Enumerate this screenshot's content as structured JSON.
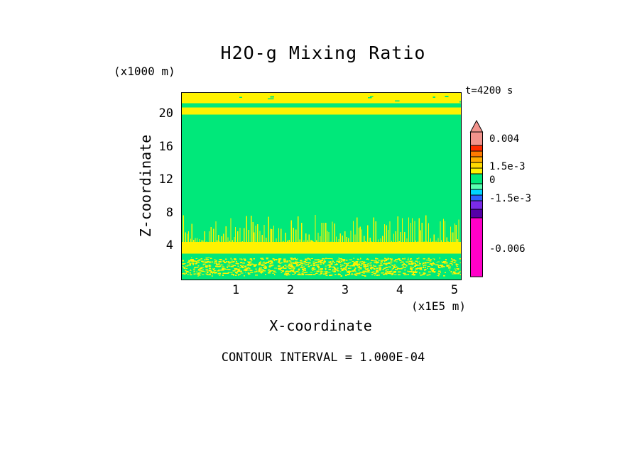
{
  "title": "H2O-g Mixing Ratio",
  "time_label": "t=4200 s",
  "footer": {
    "contour_interval_label": "CONTOUR INTERVAL = 1.000E-04"
  },
  "axes": {
    "x": {
      "label": "X-coordinate",
      "unit": "(x1E5 m)",
      "ticks": [
        "1",
        "2",
        "3",
        "4",
        "5"
      ]
    },
    "y": {
      "label": "Z-coordinate",
      "unit": "(x1000 m)",
      "ticks": [
        "20",
        "16",
        "12",
        "8",
        "4"
      ]
    }
  },
  "colorbar": {
    "arrow_color": "#F2938C",
    "labels": [
      {
        "text": "0.004"
      },
      {
        "text": "1.5e-3"
      },
      {
        "text": "0"
      },
      {
        "text": "-1.5e-3"
      },
      {
        "text": "-0.006"
      }
    ],
    "segments": [
      {
        "color": "#F2938C",
        "h": 19
      },
      {
        "color": "#FF2B00",
        "h": 8
      },
      {
        "color": "#FF7A00",
        "h": 8
      },
      {
        "color": "#FFAD00",
        "h": 8
      },
      {
        "color": "#FFD900",
        "h": 8
      },
      {
        "color": "#FFF200",
        "h": 8
      },
      {
        "color": "#00E87A",
        "h": 14
      },
      {
        "color": "#58FFB0",
        "h": 8
      },
      {
        "color": "#00D4FF",
        "h": 8
      },
      {
        "color": "#2E62FF",
        "h": 8
      },
      {
        "color": "#7A2BE8",
        "h": 12
      },
      {
        "color": "#5500A8",
        "h": 12
      },
      {
        "color": "#FF00C8",
        "h": 83
      }
    ]
  },
  "chart_data": {
    "type": "heatmap",
    "title": "H2O-g Mixing Ratio",
    "time_annotation": "t=4200 s",
    "contour_interval": 0.0001,
    "x_range": [
      0,
      5.1
    ],
    "x_unit": "1E5 m",
    "z_range": [
      0,
      22.6
    ],
    "z_unit": "1000 m",
    "colorbar_values": [
      0.004,
      0.0015,
      0,
      -0.0015,
      -0.006
    ],
    "field_colors": {
      "background": "#00E87A",
      "band": "#FFF200"
    },
    "regions": [
      {
        "name": "upper-yellow-band-a",
        "z": [
          21.35,
          22.6
        ],
        "style": "solid-yellow"
      },
      {
        "name": "green-gap",
        "z": [
          20.85,
          21.35
        ],
        "style": "green"
      },
      {
        "name": "upper-yellow-band-b",
        "z": [
          20.0,
          20.85
        ],
        "style": "solid-yellow"
      },
      {
        "name": "main-green-field",
        "z": [
          4.55,
          20.0
        ],
        "style": "green"
      },
      {
        "name": "spiky-yellow-band",
        "z": [
          3.15,
          4.55
        ],
        "style": "solid-yellow",
        "spikes_to": 7.9
      },
      {
        "name": "speckled-green-yellow",
        "z": [
          0.5,
          2.7
        ],
        "style": "yellow-speckles-on-green"
      },
      {
        "name": "bottom-green",
        "z": [
          0,
          0.5
        ],
        "style": "green"
      }
    ],
    "render": {
      "seed": 7,
      "spikes": {
        "z_base": 4.55,
        "z_tip_max": 7.9,
        "step_min": 1.5,
        "step_rand": 2.0,
        "width": 1.3,
        "exp": 1.6
      },
      "speckles": {
        "rows": [
          0.8,
          1.2,
          1.6,
          2.0,
          2.4
        ],
        "row_count": 850,
        "row_jitter": 0.22,
        "scatter_count": 250,
        "z_min": 0.5,
        "z_max": 2.7
      },
      "dashes": {
        "count": 9,
        "z_min": 21.5,
        "z_max": 22.3
      }
    }
  }
}
